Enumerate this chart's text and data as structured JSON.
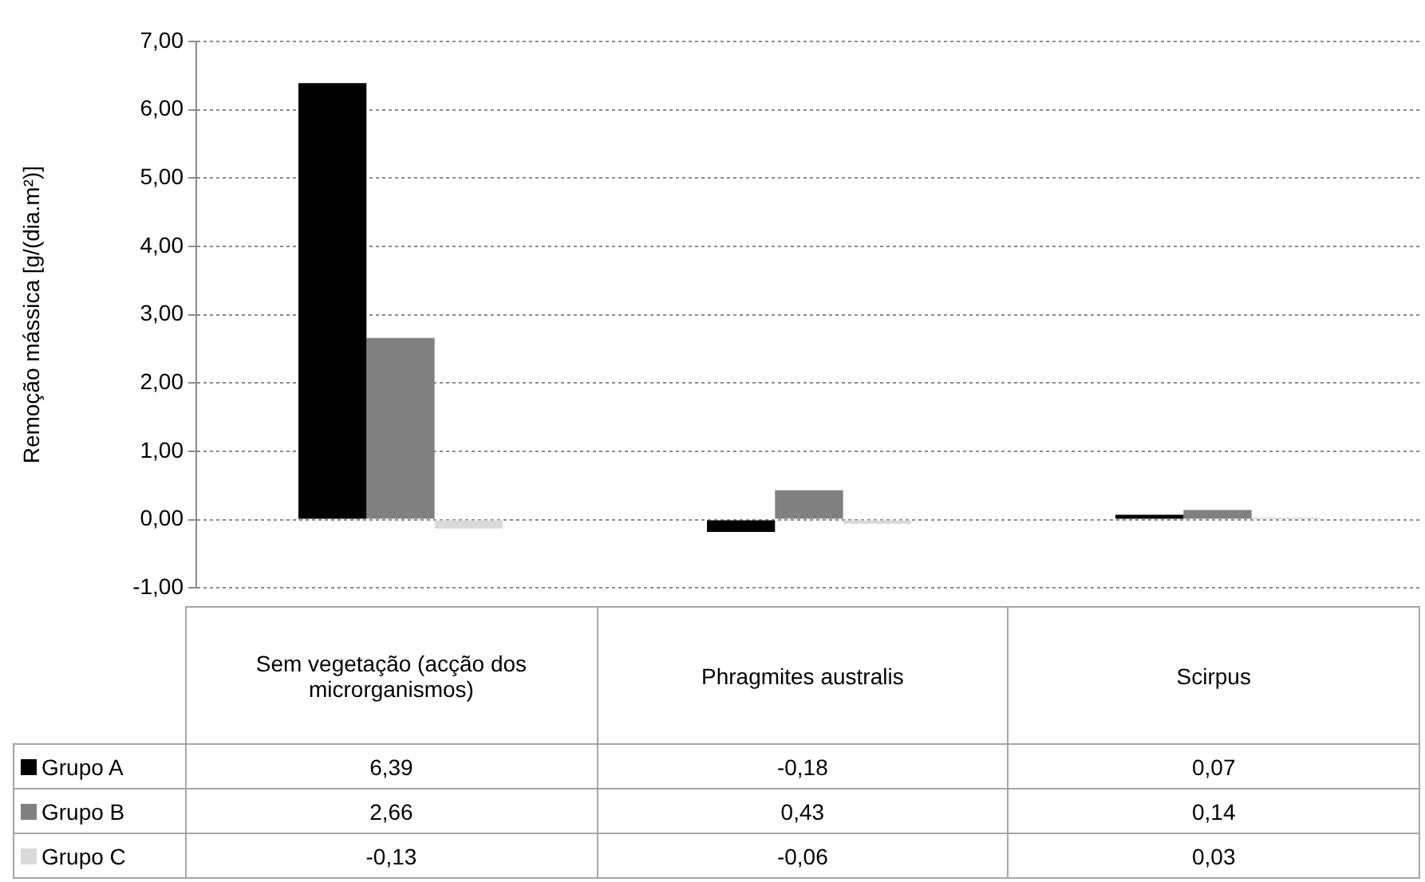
{
  "chart_data": {
    "type": "bar",
    "ylabel": "Remoção mássica [g/(dia.m²)]",
    "categories": [
      "Sem vegetação (acção dos microrganismos)",
      "Phragmites australis",
      "Scirpus"
    ],
    "series": [
      {
        "name": "Grupo A",
        "color": "#000000",
        "values": [
          6.39,
          -0.18,
          0.07
        ],
        "value_labels": [
          "6,39",
          "-0,18",
          "0,07"
        ]
      },
      {
        "name": "Grupo B",
        "color": "#808080",
        "values": [
          2.66,
          0.43,
          0.14
        ],
        "value_labels": [
          "2,66",
          "0,43",
          "0,14"
        ]
      },
      {
        "name": "Grupo C",
        "color": "#d9d9d9",
        "values": [
          -0.13,
          -0.06,
          0.03
        ],
        "value_labels": [
          "-0,13",
          "-0,06",
          "0,03"
        ]
      }
    ],
    "ylim": [
      -1,
      7
    ],
    "yticks": [
      {
        "value": -1,
        "label": "-1,00"
      },
      {
        "value": 0,
        "label": "0,00"
      },
      {
        "value": 1,
        "label": "1,00"
      },
      {
        "value": 2,
        "label": "2,00"
      },
      {
        "value": 3,
        "label": "3,00"
      },
      {
        "value": 4,
        "label": "4,00"
      },
      {
        "value": 5,
        "label": "5,00"
      },
      {
        "value": 6,
        "label": "6,00"
      },
      {
        "value": 7,
        "label": "7,00"
      }
    ],
    "grid": "y",
    "legend": "bottom"
  }
}
